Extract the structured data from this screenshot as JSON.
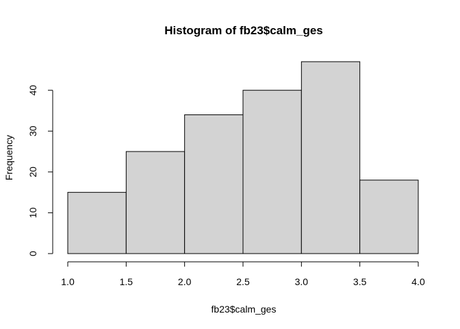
{
  "chart_data": {
    "type": "bar",
    "title": "Histogram of fb23$calm_ges",
    "xlabel": "fb23$calm_ges",
    "ylabel": "Frequency",
    "bins": [
      {
        "from": 1.0,
        "to": 1.5,
        "count": 15
      },
      {
        "from": 1.5,
        "to": 2.0,
        "count": 25
      },
      {
        "from": 2.0,
        "to": 2.5,
        "count": 34
      },
      {
        "from": 2.5,
        "to": 3.0,
        "count": 40
      },
      {
        "from": 3.0,
        "to": 3.5,
        "count": 47
      },
      {
        "from": 3.5,
        "to": 4.0,
        "count": 18
      }
    ],
    "xlim": [
      1.0,
      4.0
    ],
    "ylim": [
      0,
      47
    ],
    "x_ticks": [
      "1.0",
      "1.5",
      "2.0",
      "2.5",
      "3.0",
      "3.5",
      "4.0"
    ],
    "y_ticks": [
      "0",
      "10",
      "20",
      "30",
      "40"
    ],
    "bar_color": "#d3d3d3",
    "grid": false
  }
}
